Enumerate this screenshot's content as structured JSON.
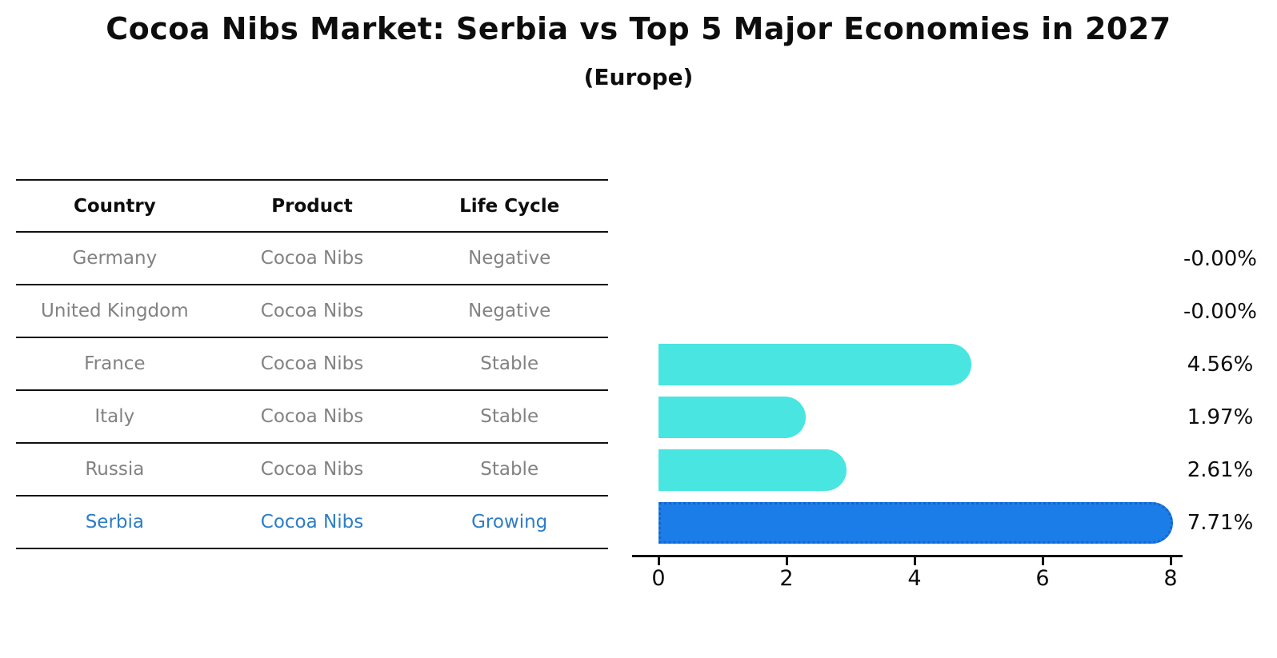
{
  "title": "Cocoa Nibs Market: Serbia vs Top 5 Major Economies in 2027",
  "subtitle": "(Europe)",
  "table": {
    "headers": {
      "country": "Country",
      "product": "Product",
      "life_cycle": "Life Cycle"
    },
    "rows": [
      {
        "country": "Germany",
        "product": "Cocoa Nibs",
        "life_cycle": "Negative",
        "highlight": false
      },
      {
        "country": "United Kingdom",
        "product": "Cocoa Nibs",
        "life_cycle": "Negative",
        "highlight": false
      },
      {
        "country": "France",
        "product": "Cocoa Nibs",
        "life_cycle": "Stable",
        "highlight": false
      },
      {
        "country": "Italy",
        "product": "Cocoa Nibs",
        "life_cycle": "Stable",
        "highlight": false
      },
      {
        "country": "Russia",
        "product": "Cocoa Nibs",
        "life_cycle": "Stable",
        "highlight": false
      },
      {
        "country": "Serbia",
        "product": "Cocoa Nibs",
        "life_cycle": "Growing",
        "highlight": true
      }
    ]
  },
  "chart_data": {
    "type": "bar",
    "orientation": "horizontal",
    "title": "Cocoa Nibs Market: Serbia vs Top 5 Major Economies in 2027 (Europe)",
    "categories": [
      "Germany",
      "United Kingdom",
      "France",
      "Italy",
      "Russia",
      "Serbia"
    ],
    "values": [
      -0.0,
      -0.0,
      4.56,
      1.97,
      2.61,
      7.71
    ],
    "value_labels": [
      "-0.00%",
      "-0.00%",
      "4.56%",
      "1.97%",
      "2.61%",
      "7.71%"
    ],
    "xlabel": "",
    "ylabel": "",
    "xlim": [
      0,
      8
    ],
    "x_ticks": [
      0,
      2,
      4,
      6,
      8
    ],
    "grid": false,
    "legend": false,
    "bar_color": "#48e5e1",
    "highlight_index": 5,
    "highlight_color": "#1b7de8",
    "highlight_border_color": "#1565cf",
    "highlight_text_color": "#2d7dc5",
    "table_text_color": "#828282"
  }
}
